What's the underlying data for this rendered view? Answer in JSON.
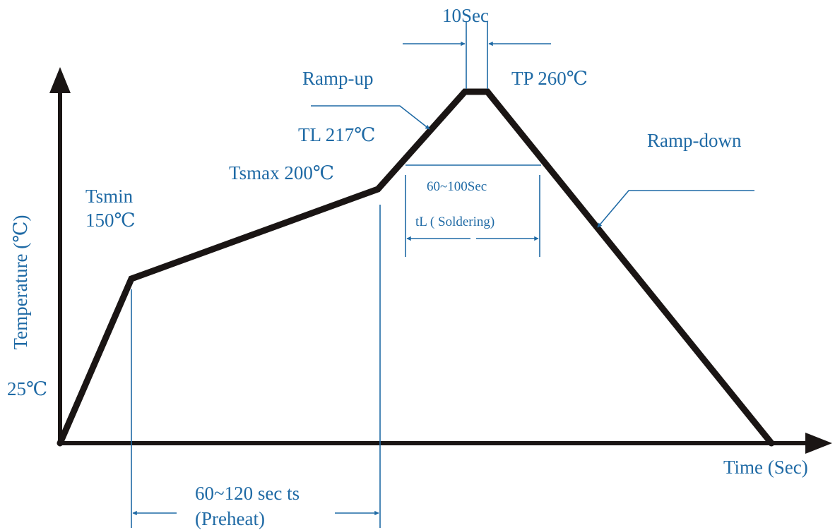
{
  "colors": {
    "curve": "#1a1514",
    "text": "#1f6aa5",
    "arrow": "#1f6aa5",
    "axis": "#1a1514"
  },
  "labels": {
    "y_axis": "Temperature (℃)",
    "x_axis": "Time (Sec)",
    "t25": "25℃",
    "tsmin_line1": "Tsmin",
    "tsmin_line2": "150℃",
    "tsmax": "Tsmax 200℃",
    "tl": "TL 217℃",
    "tp": "TP 260℃",
    "peak_time": "10Sec",
    "ramp_up": "Ramp-up",
    "ramp_down": "Ramp-down",
    "liquidus_time": "60~100Sec",
    "liquidus_name": "tL ( Soldering)",
    "preheat_time": "60~120 sec ts",
    "preheat_name": "(Preheat)"
  }
}
